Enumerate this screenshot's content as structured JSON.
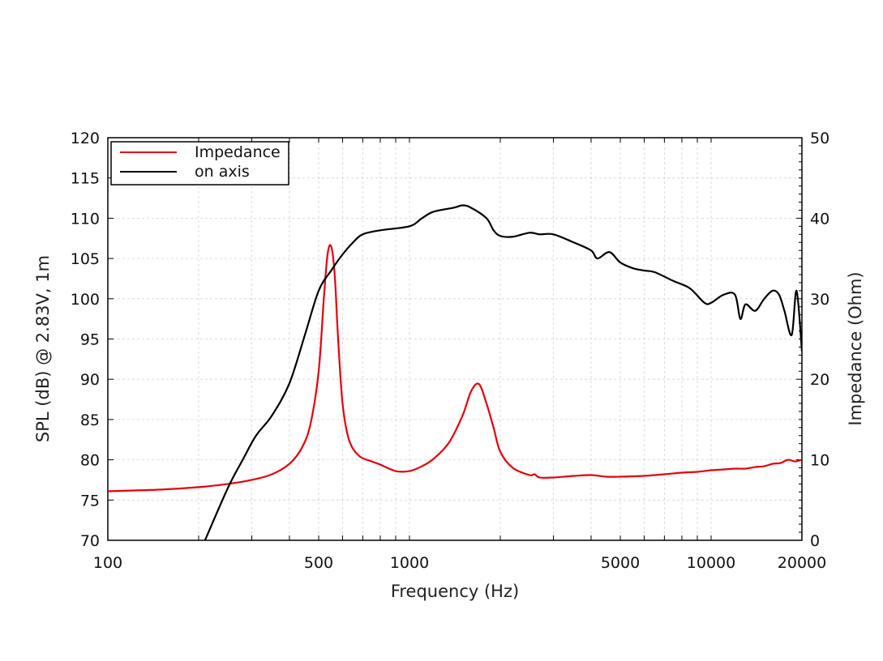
{
  "chart_data": {
    "type": "line",
    "xlabel": "Frequency (Hz)",
    "ylabel": "SPL (dB) @ 2.83V, 1m",
    "y2label": "Impedance (Ohm)",
    "x_scale": "log",
    "xlim": [
      100,
      20000
    ],
    "ylim": [
      70,
      120
    ],
    "y2lim": [
      0,
      50
    ],
    "x_ticks": [
      100,
      500,
      1000,
      5000,
      10000,
      20000
    ],
    "y_ticks": [
      70,
      75,
      80,
      85,
      90,
      95,
      100,
      105,
      110,
      115,
      120
    ],
    "y2_ticks": [
      0,
      10,
      20,
      30,
      40,
      50
    ],
    "grid": true,
    "legend_position": "top-left",
    "series": [
      {
        "name": "Impedance",
        "axis": "right",
        "color": "#e8000b",
        "x": [
          100,
          150,
          200,
          250,
          300,
          350,
          400,
          440,
          470,
          500,
          520,
          535,
          550,
          565,
          580,
          600,
          630,
          680,
          750,
          800,
          900,
          1000,
          1100,
          1200,
          1350,
          1500,
          1600,
          1700,
          1800,
          1900,
          2000,
          2200,
          2500,
          2600,
          2700,
          3000,
          3500,
          4000,
          4500,
          5000,
          6000,
          7000,
          8000,
          9000,
          10000,
          11000,
          12000,
          13000,
          14000,
          15000,
          16000,
          17000,
          18000,
          19000,
          20000
        ],
        "y": [
          6.1,
          6.3,
          6.6,
          7.0,
          7.5,
          8.2,
          9.5,
          11.5,
          14.5,
          21.0,
          30.0,
          35.5,
          36.5,
          33.0,
          25.0,
          17.0,
          12.5,
          10.5,
          9.8,
          9.4,
          8.6,
          8.6,
          9.2,
          10.1,
          12.1,
          15.5,
          18.5,
          19.4,
          17.0,
          14.0,
          11.0,
          9.0,
          8.1,
          8.2,
          7.8,
          7.8,
          8.0,
          8.1,
          7.9,
          7.9,
          8.0,
          8.2,
          8.4,
          8.5,
          8.7,
          8.8,
          8.9,
          8.9,
          9.1,
          9.2,
          9.5,
          9.6,
          10.0,
          9.8,
          10.0
        ]
      },
      {
        "name": "on axis",
        "axis": "left",
        "color": "#000000",
        "x": [
          210,
          250,
          280,
          310,
          350,
          400,
          450,
          500,
          550,
          600,
          650,
          700,
          800,
          1000,
          1100,
          1200,
          1400,
          1500,
          1600,
          1800,
          1900,
          2000,
          2200,
          2500,
          2700,
          3000,
          3500,
          4000,
          4200,
          4600,
          5000,
          5500,
          6000,
          6500,
          7500,
          8500,
          9500,
          10000,
          11000,
          12000,
          12500,
          13000,
          14000,
          15000,
          16000,
          16800,
          17500,
          18500,
          19200,
          20000
        ],
        "y": [
          70.0,
          76.5,
          80.0,
          83.0,
          85.5,
          89.5,
          95.5,
          101.0,
          103.5,
          105.5,
          107.0,
          108.0,
          108.5,
          109.0,
          110.0,
          110.8,
          111.3,
          111.6,
          111.3,
          110.0,
          108.5,
          107.8,
          107.7,
          108.2,
          108.0,
          108.0,
          107.0,
          106.0,
          105.0,
          105.8,
          104.5,
          103.8,
          103.5,
          103.3,
          102.2,
          101.3,
          99.5,
          99.5,
          100.5,
          100.5,
          97.5,
          99.3,
          98.5,
          100.0,
          101.0,
          100.5,
          98.5,
          95.5,
          101.0,
          93.5
        ]
      }
    ]
  }
}
